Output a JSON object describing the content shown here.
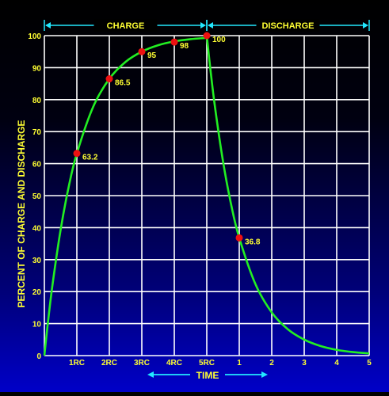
{
  "chart_data": {
    "type": "line",
    "title": "",
    "xlabel": "TIME",
    "ylabel": "PERCENT OF CHARGE AND DISCHARGE",
    "phases": [
      {
        "label": "CHARGE",
        "x_range": [
          0,
          5
        ]
      },
      {
        "label": "DISCHARGE",
        "x_range": [
          5,
          10
        ]
      }
    ],
    "x_tick_labels": [
      "1RC",
      "2RC",
      "3RC",
      "4RC",
      "5RC",
      "1",
      "2",
      "3",
      "4",
      "5"
    ],
    "y_ticks": [
      0,
      10,
      20,
      30,
      40,
      50,
      60,
      70,
      80,
      90,
      100
    ],
    "ylim": [
      0,
      100
    ],
    "grid": true,
    "series": [
      {
        "curve": "charge",
        "color": "#22ee22",
        "x": [
          0,
          0.1,
          0.25,
          0.5,
          0.75,
          1,
          1.5,
          2,
          2.5,
          3,
          3.5,
          4,
          4.5,
          5
        ],
        "values": [
          0,
          9.5,
          22.1,
          39.3,
          52.8,
          63.2,
          77.7,
          86.5,
          91.8,
          95,
          97,
          98.2,
          98.9,
          99.3
        ]
      },
      {
        "curve": "discharge",
        "color": "#22ee22",
        "x": [
          5,
          5.1,
          5.25,
          5.5,
          5.75,
          6,
          6.5,
          7,
          7.5,
          8,
          8.5,
          9,
          9.5,
          10
        ],
        "values": [
          100,
          90.5,
          77.9,
          60.7,
          47.2,
          36.8,
          22.3,
          13.5,
          8.2,
          5,
          3,
          1.8,
          1.1,
          0.7
        ]
      }
    ],
    "marked_points": [
      {
        "x": 1,
        "y": 63.2,
        "label": "63.2"
      },
      {
        "x": 2,
        "y": 86.5,
        "label": "86.5"
      },
      {
        "x": 3,
        "y": 95,
        "label": "95"
      },
      {
        "x": 4,
        "y": 98,
        "label": "98"
      },
      {
        "x": 5,
        "y": 100,
        "label": "100"
      },
      {
        "x": 6,
        "y": 36.8,
        "label": "36.8"
      }
    ],
    "colors": {
      "grid": "#ffffff",
      "curve": "#22ee22",
      "marker": "#ee1111",
      "text": "#ffff33",
      "phase_arrows": "#22e8ff"
    }
  }
}
